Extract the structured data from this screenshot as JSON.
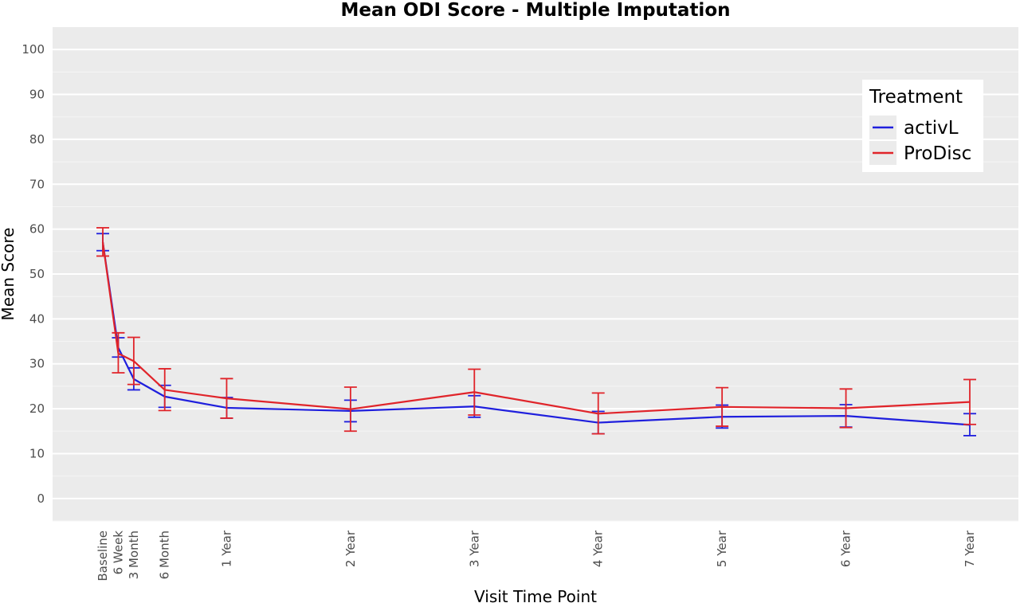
{
  "chart_data": {
    "type": "line",
    "title": "Mean ODI Score - Multiple Imputation",
    "xlabel": "Visit Time Point",
    "ylabel": "Mean Score",
    "ylim": [
      -5,
      105
    ],
    "yticks": [
      0,
      10,
      20,
      30,
      40,
      50,
      60,
      70,
      80,
      90,
      100
    ],
    "x_positions_months": [
      0,
      1.5,
      3,
      6,
      12,
      24,
      36,
      48,
      60,
      72,
      84
    ],
    "categories": [
      "Baseline",
      "6 Week",
      "3 Month",
      "6 Month",
      "1 Year",
      "2 Year",
      "3 Year",
      "4 Year",
      "5 Year",
      "6 Year",
      "7 Year"
    ],
    "grid": true,
    "legend": {
      "title": "Treatment",
      "position": "top-right"
    },
    "series": [
      {
        "name": "activL",
        "color": "#1f1fdd",
        "values": [
          57.1,
          33.6,
          26.6,
          22.7,
          20.2,
          19.5,
          20.5,
          16.9,
          18.2,
          18.4,
          16.4
        ],
        "lower": [
          55.2,
          31.5,
          24.2,
          20.3,
          17.9,
          17.1,
          18.1,
          14.4,
          15.7,
          15.9,
          14.0
        ],
        "upper": [
          59.0,
          35.8,
          29.1,
          25.2,
          22.5,
          21.9,
          22.9,
          19.4,
          20.8,
          20.9,
          18.9
        ]
      },
      {
        "name": "ProDisc",
        "color": "#e0242a",
        "values": [
          57.1,
          32.3,
          30.6,
          24.2,
          22.3,
          19.9,
          23.7,
          18.9,
          20.4,
          20.1,
          21.5
        ],
        "lower": [
          54.0,
          28.0,
          25.4,
          19.6,
          17.9,
          15.0,
          18.6,
          14.4,
          16.1,
          15.8,
          16.5
        ],
        "upper": [
          60.3,
          36.9,
          35.9,
          28.9,
          26.7,
          24.8,
          28.8,
          23.5,
          24.7,
          24.4,
          26.5
        ]
      }
    ]
  }
}
